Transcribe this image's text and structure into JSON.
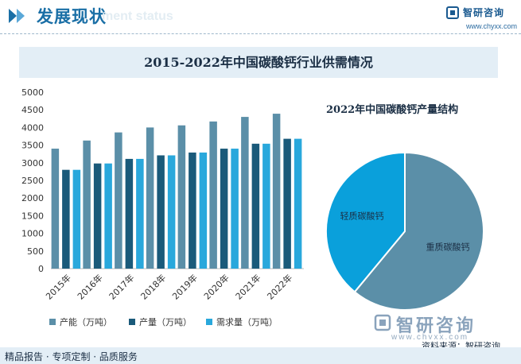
{
  "header": {
    "title": "发展现状",
    "subtitle": "ment status",
    "brand_name": "智研咨询",
    "brand_url": "www.chyxx.com"
  },
  "footer": {
    "brand": "智研咨询",
    "url": "www.chyxx.com",
    "source": "资料来源：智研咨询",
    "slogan": "精品报告 · 专项定制 · 品质服务"
  },
  "colors": {
    "capacity": "#5b8fa8",
    "output": "#1a5a7a",
    "demand": "#29a8dc",
    "pie_light": "#5b8fa8",
    "pie_heavy_label_bg": "#0aa0db",
    "accent": "#1a6fa6"
  },
  "chart_data": [
    {
      "type": "bar",
      "title": "2015-2022年中国碳酸钙行业供需情况",
      "categories": [
        "2015年",
        "2016年",
        "2017年",
        "2018年",
        "2019年",
        "2020年",
        "2021年",
        "2022年"
      ],
      "series": [
        {
          "name": "产能（万吨）",
          "values": [
            3400,
            3630,
            3860,
            4000,
            4060,
            4170,
            4300,
            4390
          ]
        },
        {
          "name": "产量（万吨）",
          "values": [
            2800,
            2980,
            3110,
            3210,
            3290,
            3400,
            3540,
            3680
          ]
        },
        {
          "name": "需求量（万吨）",
          "values": [
            2800,
            2980,
            3110,
            3210,
            3290,
            3400,
            3540,
            3680
          ]
        }
      ],
      "yticks": [
        "0",
        "500",
        "1000",
        "1500",
        "2000",
        "2500",
        "3000",
        "3500",
        "4000",
        "4500",
        "5000"
      ],
      "ylim": [
        0,
        5000
      ],
      "legend": "bottom"
    },
    {
      "type": "pie",
      "title": "2022年中国碳酸钙产量结构",
      "slices": [
        {
          "label": "重质碳酸钙",
          "value": 61
        },
        {
          "label": "轻质碳酸钙",
          "value": 39
        }
      ]
    }
  ]
}
